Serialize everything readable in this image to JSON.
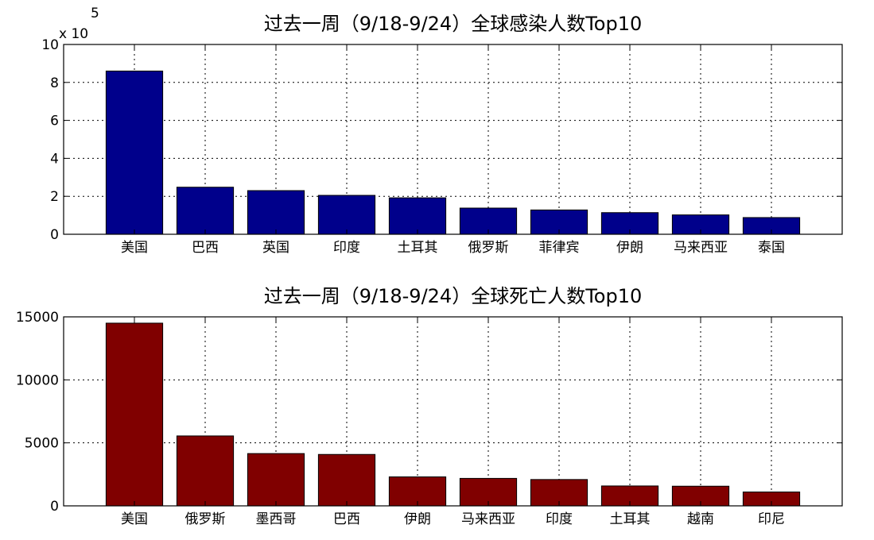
{
  "chart_data": [
    {
      "type": "bar",
      "title": "过去一周（9/18-9/24）全球感染人数Top10",
      "categories": [
        "美国",
        "巴西",
        "英国",
        "印度",
        "土耳其",
        "俄罗斯",
        "菲律宾",
        "伊朗",
        "马来西亚",
        "泰国"
      ],
      "values": [
        860000,
        248000,
        230000,
        205000,
        192000,
        138000,
        128000,
        114000,
        102000,
        88000
      ],
      "ylim": [
        0,
        1000000
      ],
      "yticks": [
        0,
        2,
        4,
        6,
        8,
        10
      ],
      "y_multiplier_label": "x 10",
      "y_multiplier_exponent": "5",
      "tick_scale": 100000,
      "bar_color": "#00008B",
      "grid": true
    },
    {
      "type": "bar",
      "title": "过去一周（9/18-9/24）全球死亡人数Top10",
      "categories": [
        "美国",
        "俄罗斯",
        "墨西哥",
        "巴西",
        "伊朗",
        "马来西亚",
        "印度",
        "土耳其",
        "越南",
        "印尼"
      ],
      "values": [
        14500,
        5550,
        4150,
        4080,
        2300,
        2180,
        2090,
        1580,
        1560,
        1100
      ],
      "ylim": [
        0,
        15000
      ],
      "yticks": [
        0,
        5000,
        10000,
        15000
      ],
      "tick_scale": 1,
      "bar_color": "#800000",
      "grid": true
    }
  ]
}
